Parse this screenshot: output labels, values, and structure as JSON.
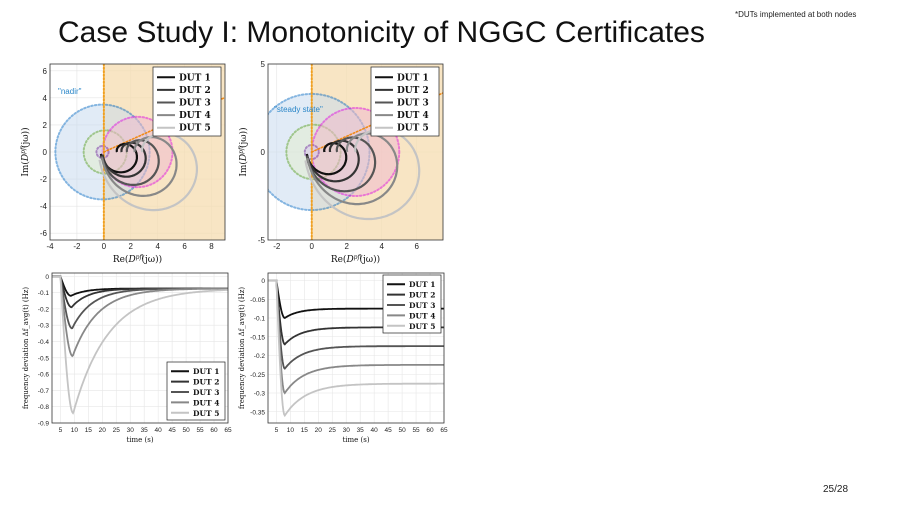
{
  "slide": {
    "title": "Case Study I: Monotonicity of NGGC Certificates",
    "footnote": "*DUTs implemented at both nodes",
    "page": "25/28"
  },
  "chart_data": [
    {
      "id": "nyquist-left",
      "type": "scatter",
      "xlabel": "Re(D_i^pf(jω))",
      "ylabel": "Im(D_i^pf(jω))",
      "xlim": [
        -4,
        9
      ],
      "ylim": [
        -6.5,
        6.5
      ],
      "xticks": [
        -4,
        -2,
        0,
        2,
        4,
        6,
        8
      ],
      "yticks": [
        -6,
        -4,
        -2,
        0,
        2,
        4,
        6
      ],
      "xtick_labels": [
        "-4",
        "-2",
        "0",
        "2",
        "4",
        "6",
        "8"
      ],
      "ytick_labels": [
        "-6",
        "-4",
        "-2",
        "0",
        "2",
        "4",
        "6"
      ],
      "grid": true,
      "legend_position": "top-right",
      "annotation": "\"nadir\"",
      "regions": [
        {
          "shape": "halfplane_right",
          "from": 0,
          "color": "#f6dcb0"
        },
        {
          "shape": "circle",
          "cx": -0.1,
          "cy": 0,
          "r": 3.5,
          "color": "#c9dcef",
          "border": "#1f78c8"
        },
        {
          "shape": "circle",
          "cx": 0.1,
          "cy": 0,
          "r": 1.6,
          "color": "#e4eed0",
          "border": "#6aa936"
        },
        {
          "shape": "circle",
          "cx": 2.5,
          "cy": 0,
          "r": 2.6,
          "color": "#f0bcd0",
          "border": "#e01ee0"
        },
        {
          "shape": "circle",
          "cx": -0.1,
          "cy": 0,
          "r": 0.45,
          "color": "#d8c8ec",
          "border": "#7b3aa8"
        }
      ],
      "series": [
        {
          "name": "DUT 1",
          "color": "#111111",
          "center": [
            1.3,
            0
          ],
          "r0": 1.3,
          "growth": 0.55,
          "sweep": 1.0
        },
        {
          "name": "DUT 2",
          "color": "#333333",
          "center": [
            1.7,
            0
          ],
          "r0": 1.5,
          "growth": 0.75,
          "sweep": 1.0
        },
        {
          "name": "DUT 3",
          "color": "#555555",
          "center": [
            2.2,
            0
          ],
          "r0": 1.9,
          "growth": 1.1,
          "sweep": 1.0
        },
        {
          "name": "DUT 4",
          "color": "#888888",
          "center": [
            2.9,
            0
          ],
          "r0": 2.4,
          "growth": 1.6,
          "sweep": 1.0
        },
        {
          "name": "DUT 5",
          "color": "#c4c4c4",
          "center": [
            3.6,
            0
          ],
          "r0": 3.0,
          "growth": 2.3,
          "sweep": 1.0
        }
      ]
    },
    {
      "id": "nyquist-right",
      "type": "scatter",
      "xlabel": "Re(D_i^pf(jω))",
      "ylabel": "Im(D_i^pf(jω))",
      "xlim": [
        -2.5,
        7.5
      ],
      "ylim": [
        -5,
        5
      ],
      "xticks": [
        -2,
        0,
        2,
        4,
        6
      ],
      "yticks": [
        -5,
        0,
        5
      ],
      "xtick_labels": [
        "-2",
        "0",
        "2",
        "4",
        "6"
      ],
      "ytick_labels": [
        "-5",
        "0",
        "5"
      ],
      "grid": true,
      "legend_position": "top-right",
      "annotation": "\"steady state\"",
      "regions": [
        {
          "shape": "halfplane_right",
          "from": 0,
          "color": "#f6dcb0"
        },
        {
          "shape": "circle",
          "cx": 0,
          "cy": 0,
          "r": 3.3,
          "color": "#c9dcef",
          "border": "#1f78c8"
        },
        {
          "shape": "circle",
          "cx": 0.1,
          "cy": 0,
          "r": 1.55,
          "color": "#e4eed0",
          "border": "#6aa936"
        },
        {
          "shape": "circle",
          "cx": 2.5,
          "cy": 0,
          "r": 2.5,
          "color": "#f0bcd0",
          "border": "#e01ee0"
        },
        {
          "shape": "circle",
          "cx": 0,
          "cy": 0,
          "r": 0.4,
          "color": "#d8c8ec",
          "border": "#7b3aa8"
        }
      ],
      "series": [
        {
          "name": "DUT 1",
          "color": "#111111",
          "center": [
            1.0,
            0
          ],
          "r0": 1.1,
          "growth": 0.45,
          "sweep": 1.0
        },
        {
          "name": "DUT 2",
          "color": "#333333",
          "center": [
            1.4,
            0
          ],
          "r0": 1.4,
          "growth": 0.65,
          "sweep": 1.0
        },
        {
          "name": "DUT 3",
          "color": "#555555",
          "center": [
            1.9,
            0
          ],
          "r0": 1.8,
          "growth": 0.95,
          "sweep": 1.0
        },
        {
          "name": "DUT 4",
          "color": "#888888",
          "center": [
            2.6,
            0
          ],
          "r0": 2.3,
          "growth": 1.35,
          "sweep": 1.0
        },
        {
          "name": "DUT 5",
          "color": "#c4c4c4",
          "center": [
            3.2,
            0
          ],
          "r0": 2.8,
          "growth": 1.9,
          "sweep": 1.0
        }
      ]
    },
    {
      "id": "freq-left",
      "type": "line",
      "xlabel": "time (s)",
      "ylabel": "frequency deviation Δf_avg(t) (Hz)",
      "xlim": [
        2,
        65
      ],
      "ylim": [
        -0.9,
        0.02
      ],
      "xticks": [
        5,
        10,
        15,
        20,
        25,
        30,
        35,
        40,
        45,
        50,
        55,
        60,
        65
      ],
      "yticks": [
        0,
        -0.1,
        -0.2,
        -0.3,
        -0.4,
        -0.5,
        -0.6,
        -0.7,
        -0.8,
        -0.9
      ],
      "xtick_labels": [
        "5",
        "10",
        "15",
        "20",
        "25",
        "30",
        "35",
        "40",
        "45",
        "50",
        "55",
        "60",
        "65"
      ],
      "ytick_labels": [
        "0",
        "-0.1",
        "-0.2",
        "-0.3",
        "-0.4",
        "-0.5",
        "-0.6",
        "-0.7",
        "-0.8",
        "-0.9"
      ],
      "grid": true,
      "legend_position": "bottom-right",
      "step_time": 5,
      "series": [
        {
          "name": "DUT 1",
          "color": "#111111",
          "nadir": -0.12,
          "nadir_time": 8.8,
          "final": -0.075
        },
        {
          "name": "DUT 2",
          "color": "#333333",
          "nadir": -0.19,
          "nadir_time": 9.0,
          "final": -0.075
        },
        {
          "name": "DUT 3",
          "color": "#555555",
          "nadir": -0.32,
          "nadir_time": 9.2,
          "final": -0.075
        },
        {
          "name": "DUT 4",
          "color": "#888888",
          "nadir": -0.49,
          "nadir_time": 9.4,
          "final": -0.075
        },
        {
          "name": "DUT 5",
          "color": "#c4c4c4",
          "nadir": -0.84,
          "nadir_time": 9.6,
          "final": -0.075
        }
      ]
    },
    {
      "id": "freq-right",
      "type": "line",
      "xlabel": "time (s)",
      "ylabel": "frequency deviation Δf_avg(t) (Hz)",
      "xlim": [
        2,
        65
      ],
      "ylim": [
        -0.38,
        0.02
      ],
      "xticks": [
        5,
        10,
        15,
        20,
        25,
        30,
        35,
        40,
        45,
        50,
        55,
        60,
        65
      ],
      "yticks": [
        0,
        -0.05,
        -0.1,
        -0.15,
        -0.2,
        -0.25,
        -0.3,
        -0.35
      ],
      "xtick_labels": [
        "5",
        "10",
        "15",
        "20",
        "25",
        "30",
        "35",
        "40",
        "45",
        "50",
        "55",
        "60",
        "65"
      ],
      "ytick_labels": [
        "0",
        "-0.05",
        "-0.1",
        "-0.15",
        "-0.2",
        "-0.25",
        "-0.3",
        "-0.35"
      ],
      "grid": true,
      "legend_position": "top-right",
      "step_time": 5,
      "series": [
        {
          "name": "DUT 1",
          "color": "#111111",
          "nadir": -0.1,
          "nadir_time": 8.0,
          "final": -0.075
        },
        {
          "name": "DUT 2",
          "color": "#333333",
          "nadir": -0.17,
          "nadir_time": 8.0,
          "final": -0.125
        },
        {
          "name": "DUT 3",
          "color": "#555555",
          "nadir": -0.235,
          "nadir_time": 8.0,
          "final": -0.175
        },
        {
          "name": "DUT 4",
          "color": "#888888",
          "nadir": -0.3,
          "nadir_time": 8.0,
          "final": -0.225
        },
        {
          "name": "DUT 5",
          "color": "#c4c4c4",
          "nadir": -0.36,
          "nadir_time": 8.0,
          "final": -0.275
        }
      ]
    }
  ]
}
